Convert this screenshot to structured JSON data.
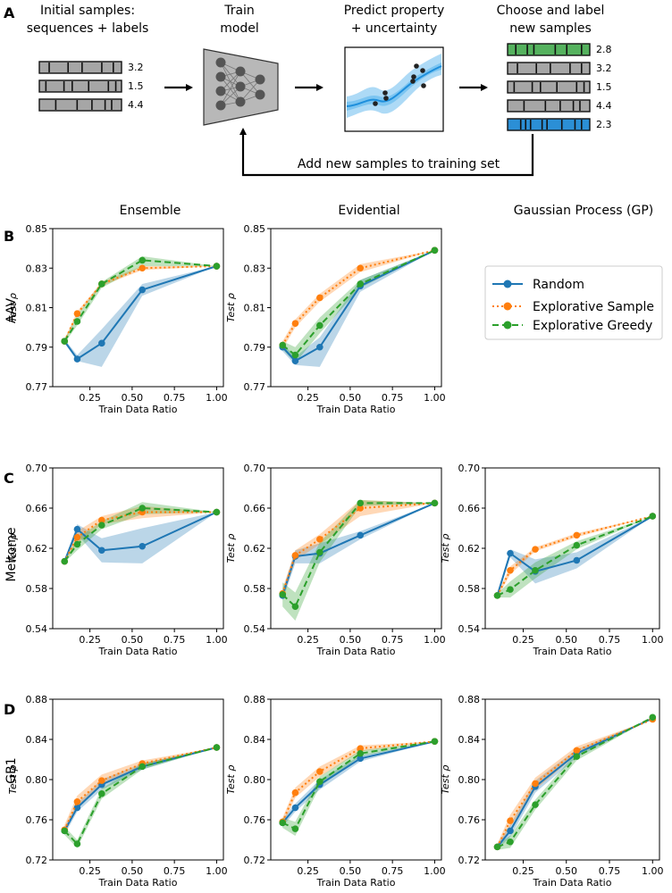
{
  "panel_labels": [
    "A",
    "B",
    "C",
    "D"
  ],
  "workflow": {
    "step1": {
      "line1": "Initial samples:",
      "line2": "sequences + labels",
      "labels": [
        "3.2",
        "1.5",
        "4.4"
      ]
    },
    "step2": {
      "line1": "Train",
      "line2": "model"
    },
    "step3": {
      "line1": "Predict property",
      "line2": "+ uncertainty"
    },
    "step4": {
      "line1": "Choose and label",
      "line2": "new samples",
      "labels": [
        "2.8",
        "3.2",
        "1.5",
        "4.4",
        "2.3"
      ]
    },
    "feedback": "Add new samples to training set",
    "colors": {
      "green": "#55b25e",
      "blue": "#2b8fd6",
      "gray": "#a6a6a6",
      "curve": "#2d9be0",
      "band": "#9fd4f5"
    }
  },
  "columns": [
    "Ensemble",
    "Evidential",
    "Gaussian Process (GP)"
  ],
  "rows": [
    "AAV",
    "Meltome",
    "GB1"
  ],
  "legend": {
    "entries": [
      {
        "name": "Random",
        "color": "#1f77b4",
        "dash": "solid"
      },
      {
        "name": "Explorative Sample",
        "color": "#ff7f0e",
        "dash": "dotted"
      },
      {
        "name": "Explorative Greedy",
        "color": "#2ca02c",
        "dash": "dashed"
      }
    ]
  },
  "chart_data": [
    {
      "id": "aav-ensemble",
      "type": "line",
      "row": "AAV",
      "column": "Ensemble",
      "xlabel": "Train Data Ratio",
      "ylabel": "Test ρ",
      "xlim": [
        0.03,
        1.04
      ],
      "xticks": [
        "0.25",
        "0.50",
        "0.75",
        "1.00"
      ],
      "ylim": [
        0.77,
        0.85
      ],
      "yticks": [
        "0.77",
        "0.79",
        "0.81",
        "0.83",
        "0.85"
      ],
      "series": [
        {
          "name": "Random",
          "x": [
            0.1,
            0.175,
            0.32,
            0.56,
            1.0
          ],
          "y": [
            0.793,
            0.784,
            0.792,
            0.819,
            0.831
          ],
          "lo": [
            0.792,
            0.783,
            0.78,
            0.816,
            0.831
          ],
          "hi": [
            0.794,
            0.786,
            0.799,
            0.822,
            0.831
          ]
        },
        {
          "name": "Explorative Sample",
          "x": [
            0.1,
            0.175,
            0.32,
            0.56,
            1.0
          ],
          "y": [
            0.793,
            0.807,
            0.822,
            0.83,
            0.831
          ],
          "lo": [
            0.792,
            0.806,
            0.821,
            0.829,
            0.831
          ],
          "hi": [
            0.794,
            0.808,
            0.823,
            0.831,
            0.831
          ]
        },
        {
          "name": "Explorative Greedy",
          "x": [
            0.1,
            0.175,
            0.32,
            0.56,
            1.0
          ],
          "y": [
            0.793,
            0.803,
            0.822,
            0.834,
            0.831
          ],
          "lo": [
            0.792,
            0.801,
            0.82,
            0.831,
            0.831
          ],
          "hi": [
            0.794,
            0.806,
            0.823,
            0.836,
            0.831
          ]
        }
      ]
    },
    {
      "id": "aav-evidential",
      "type": "line",
      "row": "AAV",
      "column": "Evidential",
      "xlabel": "Train Data Ratio",
      "ylabel": "Test ρ",
      "xlim": [
        0.03,
        1.04
      ],
      "xticks": [
        "0.25",
        "0.50",
        "0.75",
        "1.00"
      ],
      "ylim": [
        0.77,
        0.85
      ],
      "yticks": [
        "0.77",
        "0.79",
        "0.81",
        "0.83",
        "0.85"
      ],
      "series": [
        {
          "name": "Random",
          "x": [
            0.1,
            0.175,
            0.32,
            0.56,
            1.0
          ],
          "y": [
            0.79,
            0.783,
            0.79,
            0.821,
            0.839
          ],
          "lo": [
            0.788,
            0.781,
            0.78,
            0.818,
            0.839
          ],
          "hi": [
            0.792,
            0.785,
            0.795,
            0.824,
            0.839
          ]
        },
        {
          "name": "Explorative Sample",
          "x": [
            0.1,
            0.175,
            0.32,
            0.56,
            1.0
          ],
          "y": [
            0.791,
            0.802,
            0.815,
            0.83,
            0.839
          ],
          "lo": [
            0.789,
            0.8,
            0.813,
            0.828,
            0.839
          ],
          "hi": [
            0.793,
            0.804,
            0.817,
            0.832,
            0.839
          ]
        },
        {
          "name": "Explorative Greedy",
          "x": [
            0.1,
            0.175,
            0.32,
            0.56,
            1.0
          ],
          "y": [
            0.791,
            0.786,
            0.801,
            0.822,
            0.839
          ],
          "lo": [
            0.789,
            0.782,
            0.797,
            0.82,
            0.839
          ],
          "hi": [
            0.793,
            0.79,
            0.805,
            0.824,
            0.839
          ]
        }
      ]
    },
    {
      "id": "meltome-ensemble",
      "type": "line",
      "row": "Meltome",
      "column": "Ensemble",
      "xlabel": "Train Data Ratio",
      "ylabel": "Test ρ",
      "xlim": [
        0.03,
        1.04
      ],
      "xticks": [
        "0.25",
        "0.50",
        "0.75",
        "1.00"
      ],
      "ylim": [
        0.54,
        0.7
      ],
      "yticks": [
        "0.54",
        "0.58",
        "0.62",
        "0.66",
        "0.70"
      ],
      "series": [
        {
          "name": "Random",
          "x": [
            0.1,
            0.175,
            0.32,
            0.56,
            1.0
          ],
          "y": [
            0.607,
            0.639,
            0.618,
            0.622,
            0.656
          ],
          "lo": [
            0.606,
            0.634,
            0.606,
            0.605,
            0.656
          ],
          "hi": [
            0.608,
            0.644,
            0.63,
            0.64,
            0.656
          ]
        },
        {
          "name": "Explorative Sample",
          "x": [
            0.1,
            0.175,
            0.32,
            0.56,
            1.0
          ],
          "y": [
            0.607,
            0.631,
            0.648,
            0.656,
            0.656
          ],
          "lo": [
            0.606,
            0.625,
            0.644,
            0.65,
            0.656
          ],
          "hi": [
            0.608,
            0.637,
            0.652,
            0.662,
            0.656
          ]
        },
        {
          "name": "Explorative Greedy",
          "x": [
            0.1,
            0.175,
            0.32,
            0.56,
            1.0
          ],
          "y": [
            0.607,
            0.624,
            0.643,
            0.66,
            0.656
          ],
          "lo": [
            0.606,
            0.618,
            0.639,
            0.654,
            0.656
          ],
          "hi": [
            0.608,
            0.63,
            0.647,
            0.666,
            0.656
          ]
        }
      ]
    },
    {
      "id": "meltome-evidential",
      "type": "line",
      "row": "Meltome",
      "column": "Evidential",
      "xlabel": "Train Data Ratio",
      "ylabel": "Test ρ",
      "xlim": [
        0.03,
        1.04
      ],
      "xticks": [
        "0.25",
        "0.50",
        "0.75",
        "1.00"
      ],
      "ylim": [
        0.54,
        0.7
      ],
      "yticks": [
        "0.54",
        "0.58",
        "0.62",
        "0.66",
        "0.70"
      ],
      "series": [
        {
          "name": "Random",
          "x": [
            0.1,
            0.175,
            0.32,
            0.56,
            1.0
          ],
          "y": [
            0.573,
            0.612,
            0.615,
            0.633,
            0.665
          ],
          "lo": [
            0.568,
            0.605,
            0.605,
            0.629,
            0.665
          ],
          "hi": [
            0.578,
            0.618,
            0.625,
            0.637,
            0.665
          ]
        },
        {
          "name": "Explorative Sample",
          "x": [
            0.1,
            0.175,
            0.32,
            0.56,
            1.0
          ],
          "y": [
            0.575,
            0.613,
            0.629,
            0.66,
            0.665
          ],
          "lo": [
            0.57,
            0.608,
            0.624,
            0.652,
            0.665
          ],
          "hi": [
            0.58,
            0.618,
            0.634,
            0.668,
            0.665
          ]
        },
        {
          "name": "Explorative Greedy",
          "x": [
            0.1,
            0.175,
            0.32,
            0.56,
            1.0
          ],
          "y": [
            0.574,
            0.562,
            0.616,
            0.665,
            0.665
          ],
          "lo": [
            0.562,
            0.548,
            0.606,
            0.662,
            0.665
          ],
          "hi": [
            0.586,
            0.576,
            0.626,
            0.668,
            0.665
          ]
        }
      ]
    },
    {
      "id": "meltome-gp",
      "type": "line",
      "row": "Meltome",
      "column": "Gaussian Process (GP)",
      "xlabel": "Train Data Ratio",
      "ylabel": "Test ρ",
      "xlim": [
        0.03,
        1.04
      ],
      "xticks": [
        "0.25",
        "0.50",
        "0.75",
        "1.00"
      ],
      "ylim": [
        0.54,
        0.7
      ],
      "yticks": [
        "0.54",
        "0.58",
        "0.62",
        "0.66",
        "0.70"
      ],
      "series": [
        {
          "name": "Random",
          "x": [
            0.1,
            0.175,
            0.32,
            0.56,
            1.0
          ],
          "y": [
            0.573,
            0.615,
            0.597,
            0.608,
            0.652
          ],
          "lo": [
            0.571,
            0.611,
            0.585,
            0.6,
            0.652
          ],
          "hi": [
            0.575,
            0.619,
            0.609,
            0.616,
            0.652
          ]
        },
        {
          "name": "Explorative Sample",
          "x": [
            0.1,
            0.175,
            0.32,
            0.56,
            1.0
          ],
          "y": [
            0.573,
            0.598,
            0.619,
            0.633,
            0.652
          ],
          "lo": [
            0.571,
            0.594,
            0.617,
            0.631,
            0.652
          ],
          "hi": [
            0.575,
            0.602,
            0.621,
            0.635,
            0.652
          ]
        },
        {
          "name": "Explorative Greedy",
          "x": [
            0.1,
            0.175,
            0.32,
            0.56,
            1.0
          ],
          "y": [
            0.573,
            0.579,
            0.598,
            0.623,
            0.652
          ],
          "lo": [
            0.571,
            0.571,
            0.59,
            0.619,
            0.652
          ],
          "hi": [
            0.575,
            0.587,
            0.606,
            0.627,
            0.652
          ]
        }
      ]
    },
    {
      "id": "gb1-ensemble",
      "type": "line",
      "row": "GB1",
      "column": "Ensemble",
      "xlabel": "Train Data Ratio",
      "ylabel": "Test ρ",
      "xlim": [
        0.03,
        1.04
      ],
      "xticks": [
        "0.25",
        "0.50",
        "0.75",
        "1.00"
      ],
      "ylim": [
        0.72,
        0.88
      ],
      "yticks": [
        "0.72",
        "0.76",
        "0.80",
        "0.84",
        "0.88"
      ],
      "series": [
        {
          "name": "Random",
          "x": [
            0.1,
            0.175,
            0.32,
            0.56,
            1.0
          ],
          "y": [
            0.749,
            0.772,
            0.795,
            0.813,
            0.832
          ],
          "lo": [
            0.745,
            0.768,
            0.79,
            0.81,
            0.832
          ],
          "hi": [
            0.753,
            0.776,
            0.8,
            0.816,
            0.832
          ]
        },
        {
          "name": "Explorative Sample",
          "x": [
            0.1,
            0.175,
            0.32,
            0.56,
            1.0
          ],
          "y": [
            0.75,
            0.778,
            0.799,
            0.816,
            0.832
          ],
          "lo": [
            0.746,
            0.773,
            0.794,
            0.813,
            0.832
          ],
          "hi": [
            0.755,
            0.784,
            0.805,
            0.819,
            0.832
          ]
        },
        {
          "name": "Explorative Greedy",
          "x": [
            0.1,
            0.175,
            0.32,
            0.56,
            1.0
          ],
          "y": [
            0.749,
            0.736,
            0.786,
            0.813,
            0.832
          ],
          "lo": [
            0.745,
            0.732,
            0.781,
            0.81,
            0.832
          ],
          "hi": [
            0.753,
            0.74,
            0.791,
            0.816,
            0.832
          ]
        }
      ]
    },
    {
      "id": "gb1-evidential",
      "type": "line",
      "row": "GB1",
      "column": "Evidential",
      "xlabel": "Train Data Ratio",
      "ylabel": "Test ρ",
      "xlim": [
        0.03,
        1.04
      ],
      "xticks": [
        "0.25",
        "0.50",
        "0.75",
        "1.00"
      ],
      "ylim": [
        0.72,
        0.88
      ],
      "yticks": [
        "0.72",
        "0.76",
        "0.80",
        "0.84",
        "0.88"
      ],
      "series": [
        {
          "name": "Random",
          "x": [
            0.1,
            0.175,
            0.32,
            0.56,
            1.0
          ],
          "y": [
            0.757,
            0.772,
            0.795,
            0.821,
            0.838
          ],
          "lo": [
            0.753,
            0.768,
            0.79,
            0.818,
            0.838
          ],
          "hi": [
            0.761,
            0.776,
            0.8,
            0.824,
            0.838
          ]
        },
        {
          "name": "Explorative Sample",
          "x": [
            0.1,
            0.175,
            0.32,
            0.56,
            1.0
          ],
          "y": [
            0.758,
            0.787,
            0.808,
            0.831,
            0.838
          ],
          "lo": [
            0.754,
            0.782,
            0.803,
            0.828,
            0.838
          ],
          "hi": [
            0.762,
            0.792,
            0.813,
            0.834,
            0.838
          ]
        },
        {
          "name": "Explorative Greedy",
          "x": [
            0.1,
            0.175,
            0.32,
            0.56,
            1.0
          ],
          "y": [
            0.757,
            0.751,
            0.798,
            0.826,
            0.838
          ],
          "lo": [
            0.752,
            0.744,
            0.793,
            0.823,
            0.838
          ],
          "hi": [
            0.762,
            0.758,
            0.803,
            0.829,
            0.838
          ]
        }
      ]
    },
    {
      "id": "gb1-gp",
      "type": "line",
      "row": "GB1",
      "column": "Gaussian Process (GP)",
      "xlabel": "Train Data Ratio",
      "ylabel": "Test ρ",
      "xlim": [
        0.03,
        1.04
      ],
      "xticks": [
        "0.25",
        "0.50",
        "0.75",
        "1.00"
      ],
      "ylim": [
        0.72,
        0.88
      ],
      "yticks": [
        "0.72",
        "0.76",
        "0.80",
        "0.84",
        "0.88"
      ],
      "series": [
        {
          "name": "Random",
          "x": [
            0.1,
            0.175,
            0.32,
            0.56,
            1.0
          ],
          "y": [
            0.733,
            0.749,
            0.793,
            0.826,
            0.861
          ],
          "lo": [
            0.73,
            0.743,
            0.787,
            0.822,
            0.861
          ],
          "hi": [
            0.736,
            0.755,
            0.799,
            0.83,
            0.861
          ]
        },
        {
          "name": "Explorative Sample",
          "x": [
            0.1,
            0.175,
            0.32,
            0.56,
            1.0
          ],
          "y": [
            0.733,
            0.759,
            0.796,
            0.829,
            0.86
          ],
          "lo": [
            0.73,
            0.753,
            0.79,
            0.825,
            0.86
          ],
          "hi": [
            0.736,
            0.765,
            0.802,
            0.833,
            0.86
          ]
        },
        {
          "name": "Explorative Greedy",
          "x": [
            0.1,
            0.175,
            0.32,
            0.56,
            1.0
          ],
          "y": [
            0.733,
            0.738,
            0.775,
            0.823,
            0.862
          ],
          "lo": [
            0.73,
            0.732,
            0.77,
            0.819,
            0.862
          ],
          "hi": [
            0.736,
            0.744,
            0.78,
            0.827,
            0.862
          ]
        }
      ]
    }
  ]
}
